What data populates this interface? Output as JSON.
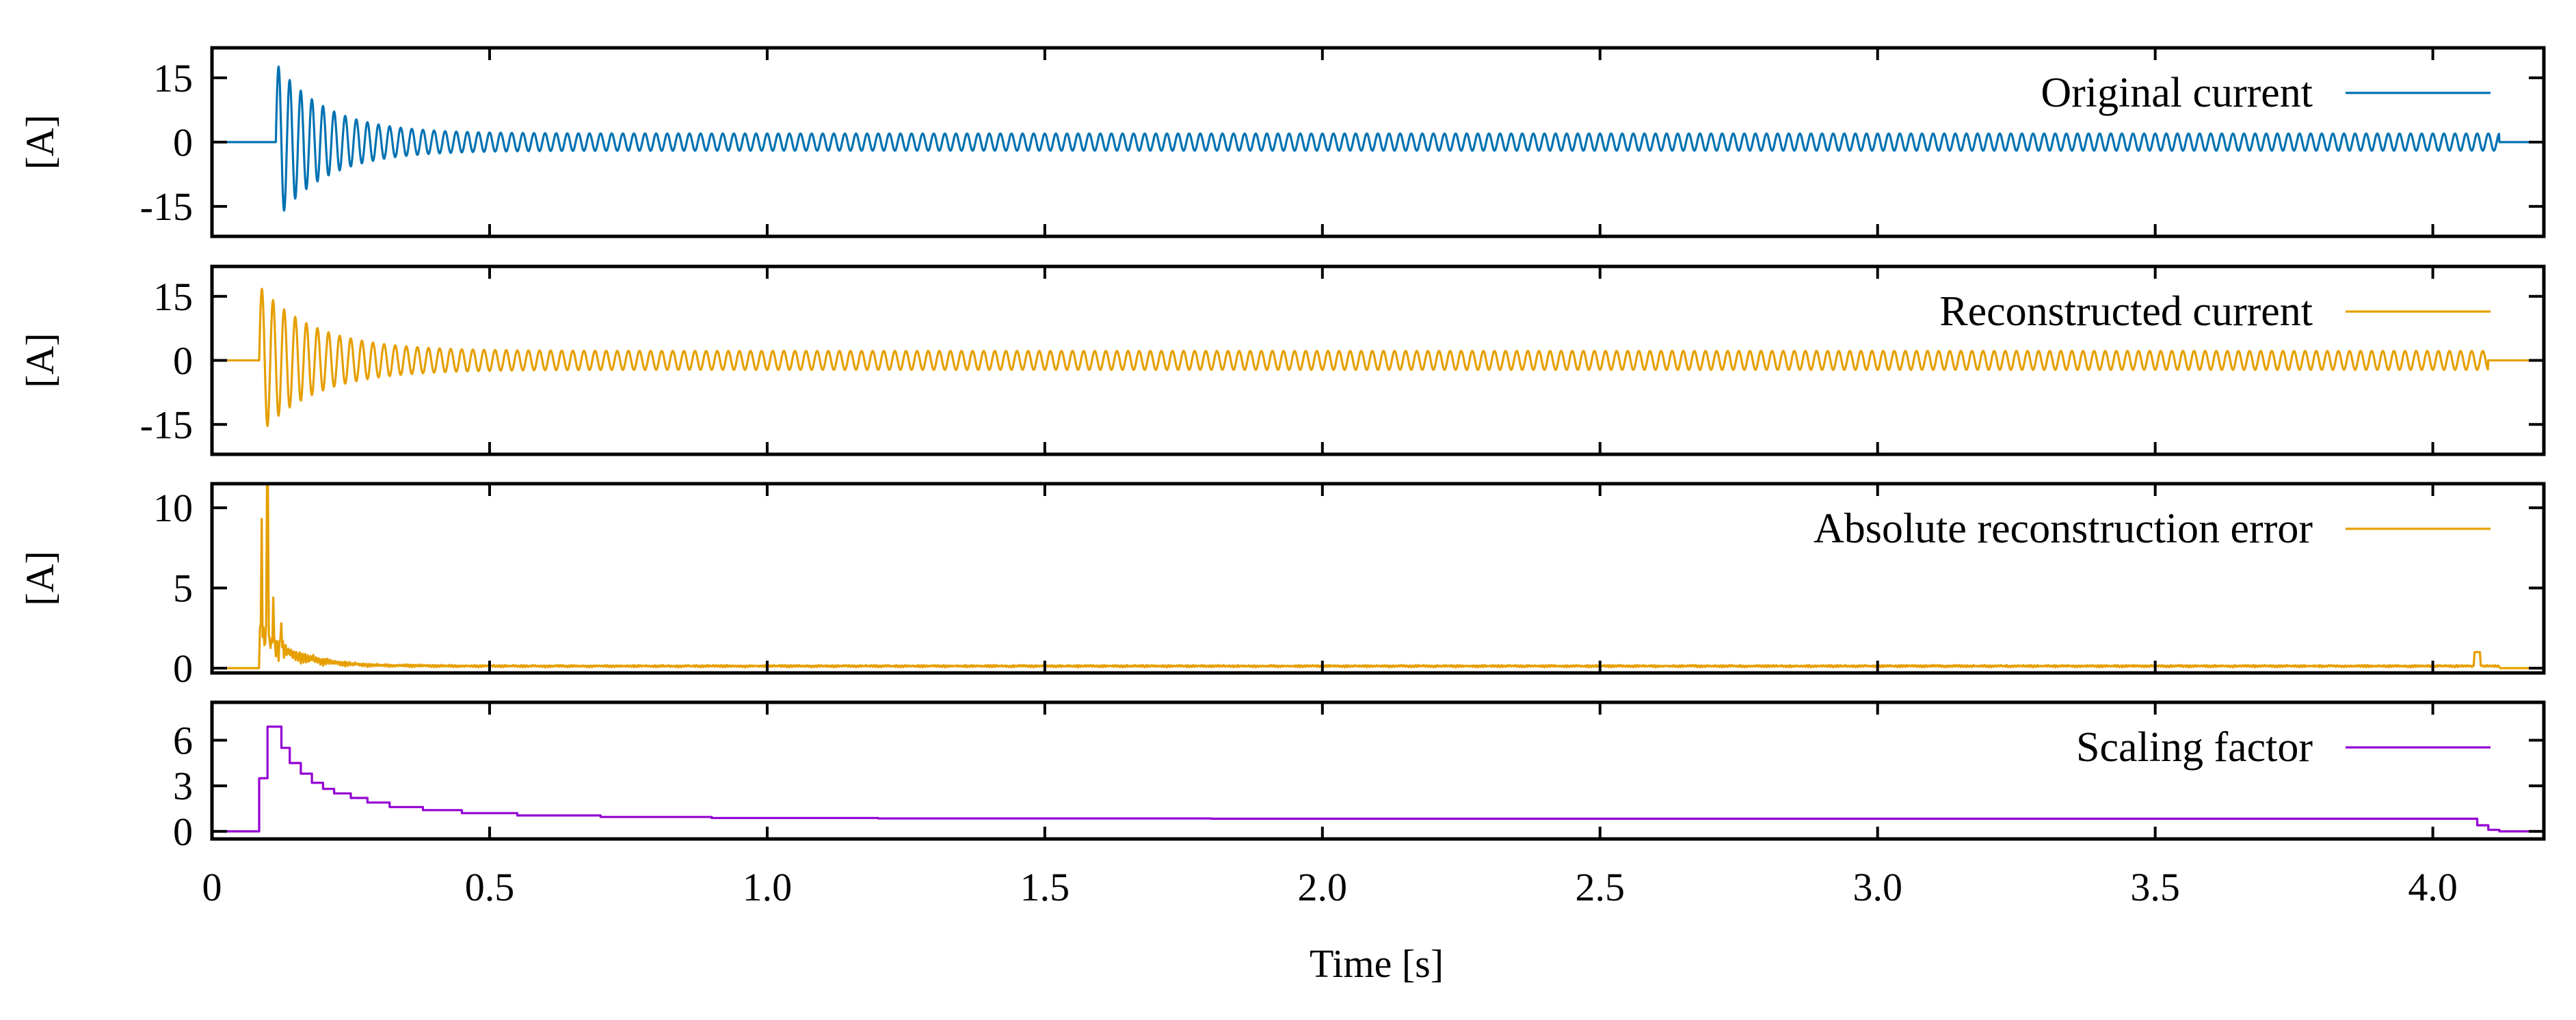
{
  "chart_data": [
    {
      "type": "line",
      "panel": "original-current",
      "legend": "Original current",
      "ylabel": "[A]",
      "yticks": [
        "15",
        "0",
        "-15"
      ],
      "ytick_values": [
        15,
        0,
        -15
      ],
      "ylim": [
        -22,
        22
      ],
      "xlim": [
        0,
        4.2
      ],
      "color": "#0072b2",
      "signal": {
        "kind": "damped_sine",
        "frequency_hz": 50,
        "start_s": 0.115,
        "end_s": 4.12,
        "peak_amplitude": 18.5,
        "steady_amplitude": 2.0,
        "decay_tau_s": 0.09
      }
    },
    {
      "type": "line",
      "panel": "reconstructed-current",
      "legend": "Reconstructed current",
      "ylabel": "[A]",
      "yticks": [
        "15",
        "0",
        "-15"
      ],
      "ytick_values": [
        15,
        0,
        -15
      ],
      "ylim": [
        -22,
        22
      ],
      "xlim": [
        0,
        4.2
      ],
      "color": "#e69f00",
      "signal": {
        "kind": "damped_sine",
        "frequency_hz": 50,
        "start_s": 0.085,
        "end_s": 4.1,
        "peak_amplitude": 17.5,
        "steady_amplitude": 2.2,
        "decay_tau_s": 0.1
      }
    },
    {
      "type": "line",
      "panel": "absolute-error",
      "legend": "Absolute reconstruction error",
      "ylabel": "[A]",
      "yticks": [
        "10",
        "5",
        "0"
      ],
      "ytick_values": [
        10,
        5,
        0
      ],
      "ylim": [
        -0.3,
        11.5
      ],
      "xlim": [
        0,
        4.2
      ],
      "color": "#e69f00",
      "signal": {
        "kind": "error_envelope",
        "start_s": 0.085,
        "end_s": 4.12,
        "spikes": [
          {
            "x": 0.09,
            "y": 9.3
          },
          {
            "x": 0.1,
            "y": 11.4
          },
          {
            "x": 0.11,
            "y": 4.4
          },
          {
            "x": 0.125,
            "y": 2.8
          }
        ],
        "floor": 0.2,
        "late_spike": {
          "x": 4.08,
          "y": 1.0
        }
      }
    },
    {
      "type": "line",
      "panel": "scaling-factor",
      "legend": "Scaling factor",
      "ylabel": "",
      "yticks": [
        "6",
        "3",
        "0"
      ],
      "ytick_values": [
        6,
        3,
        0
      ],
      "ylim": [
        -0.5,
        8.5
      ],
      "xlim": [
        0,
        4.2
      ],
      "color": "#9400d3",
      "signal": {
        "kind": "step",
        "x": [
          0,
          0.085,
          0.1,
          0.125,
          0.14,
          0.16,
          0.18,
          0.2,
          0.22,
          0.25,
          0.28,
          0.32,
          0.38,
          0.45,
          0.55,
          0.7,
          0.9,
          1.2,
          1.8,
          4.08,
          4.1,
          4.12,
          4.2
        ],
        "y": [
          0,
          3.5,
          6.9,
          5.5,
          4.5,
          3.8,
          3.2,
          2.8,
          2.5,
          2.2,
          1.9,
          1.6,
          1.4,
          1.2,
          1.05,
          0.95,
          0.88,
          0.85,
          0.83,
          0.4,
          0.1,
          0,
          0
        ]
      }
    }
  ],
  "xaxis": {
    "label": "Time [s]",
    "ticks": [
      "0",
      "0.5",
      "1.0",
      "1.5",
      "2.0",
      "2.5",
      "3.0",
      "3.5",
      "4.0"
    ],
    "tick_values": [
      0,
      0.5,
      1.0,
      1.5,
      2.0,
      2.5,
      3.0,
      3.5,
      4.0
    ]
  }
}
